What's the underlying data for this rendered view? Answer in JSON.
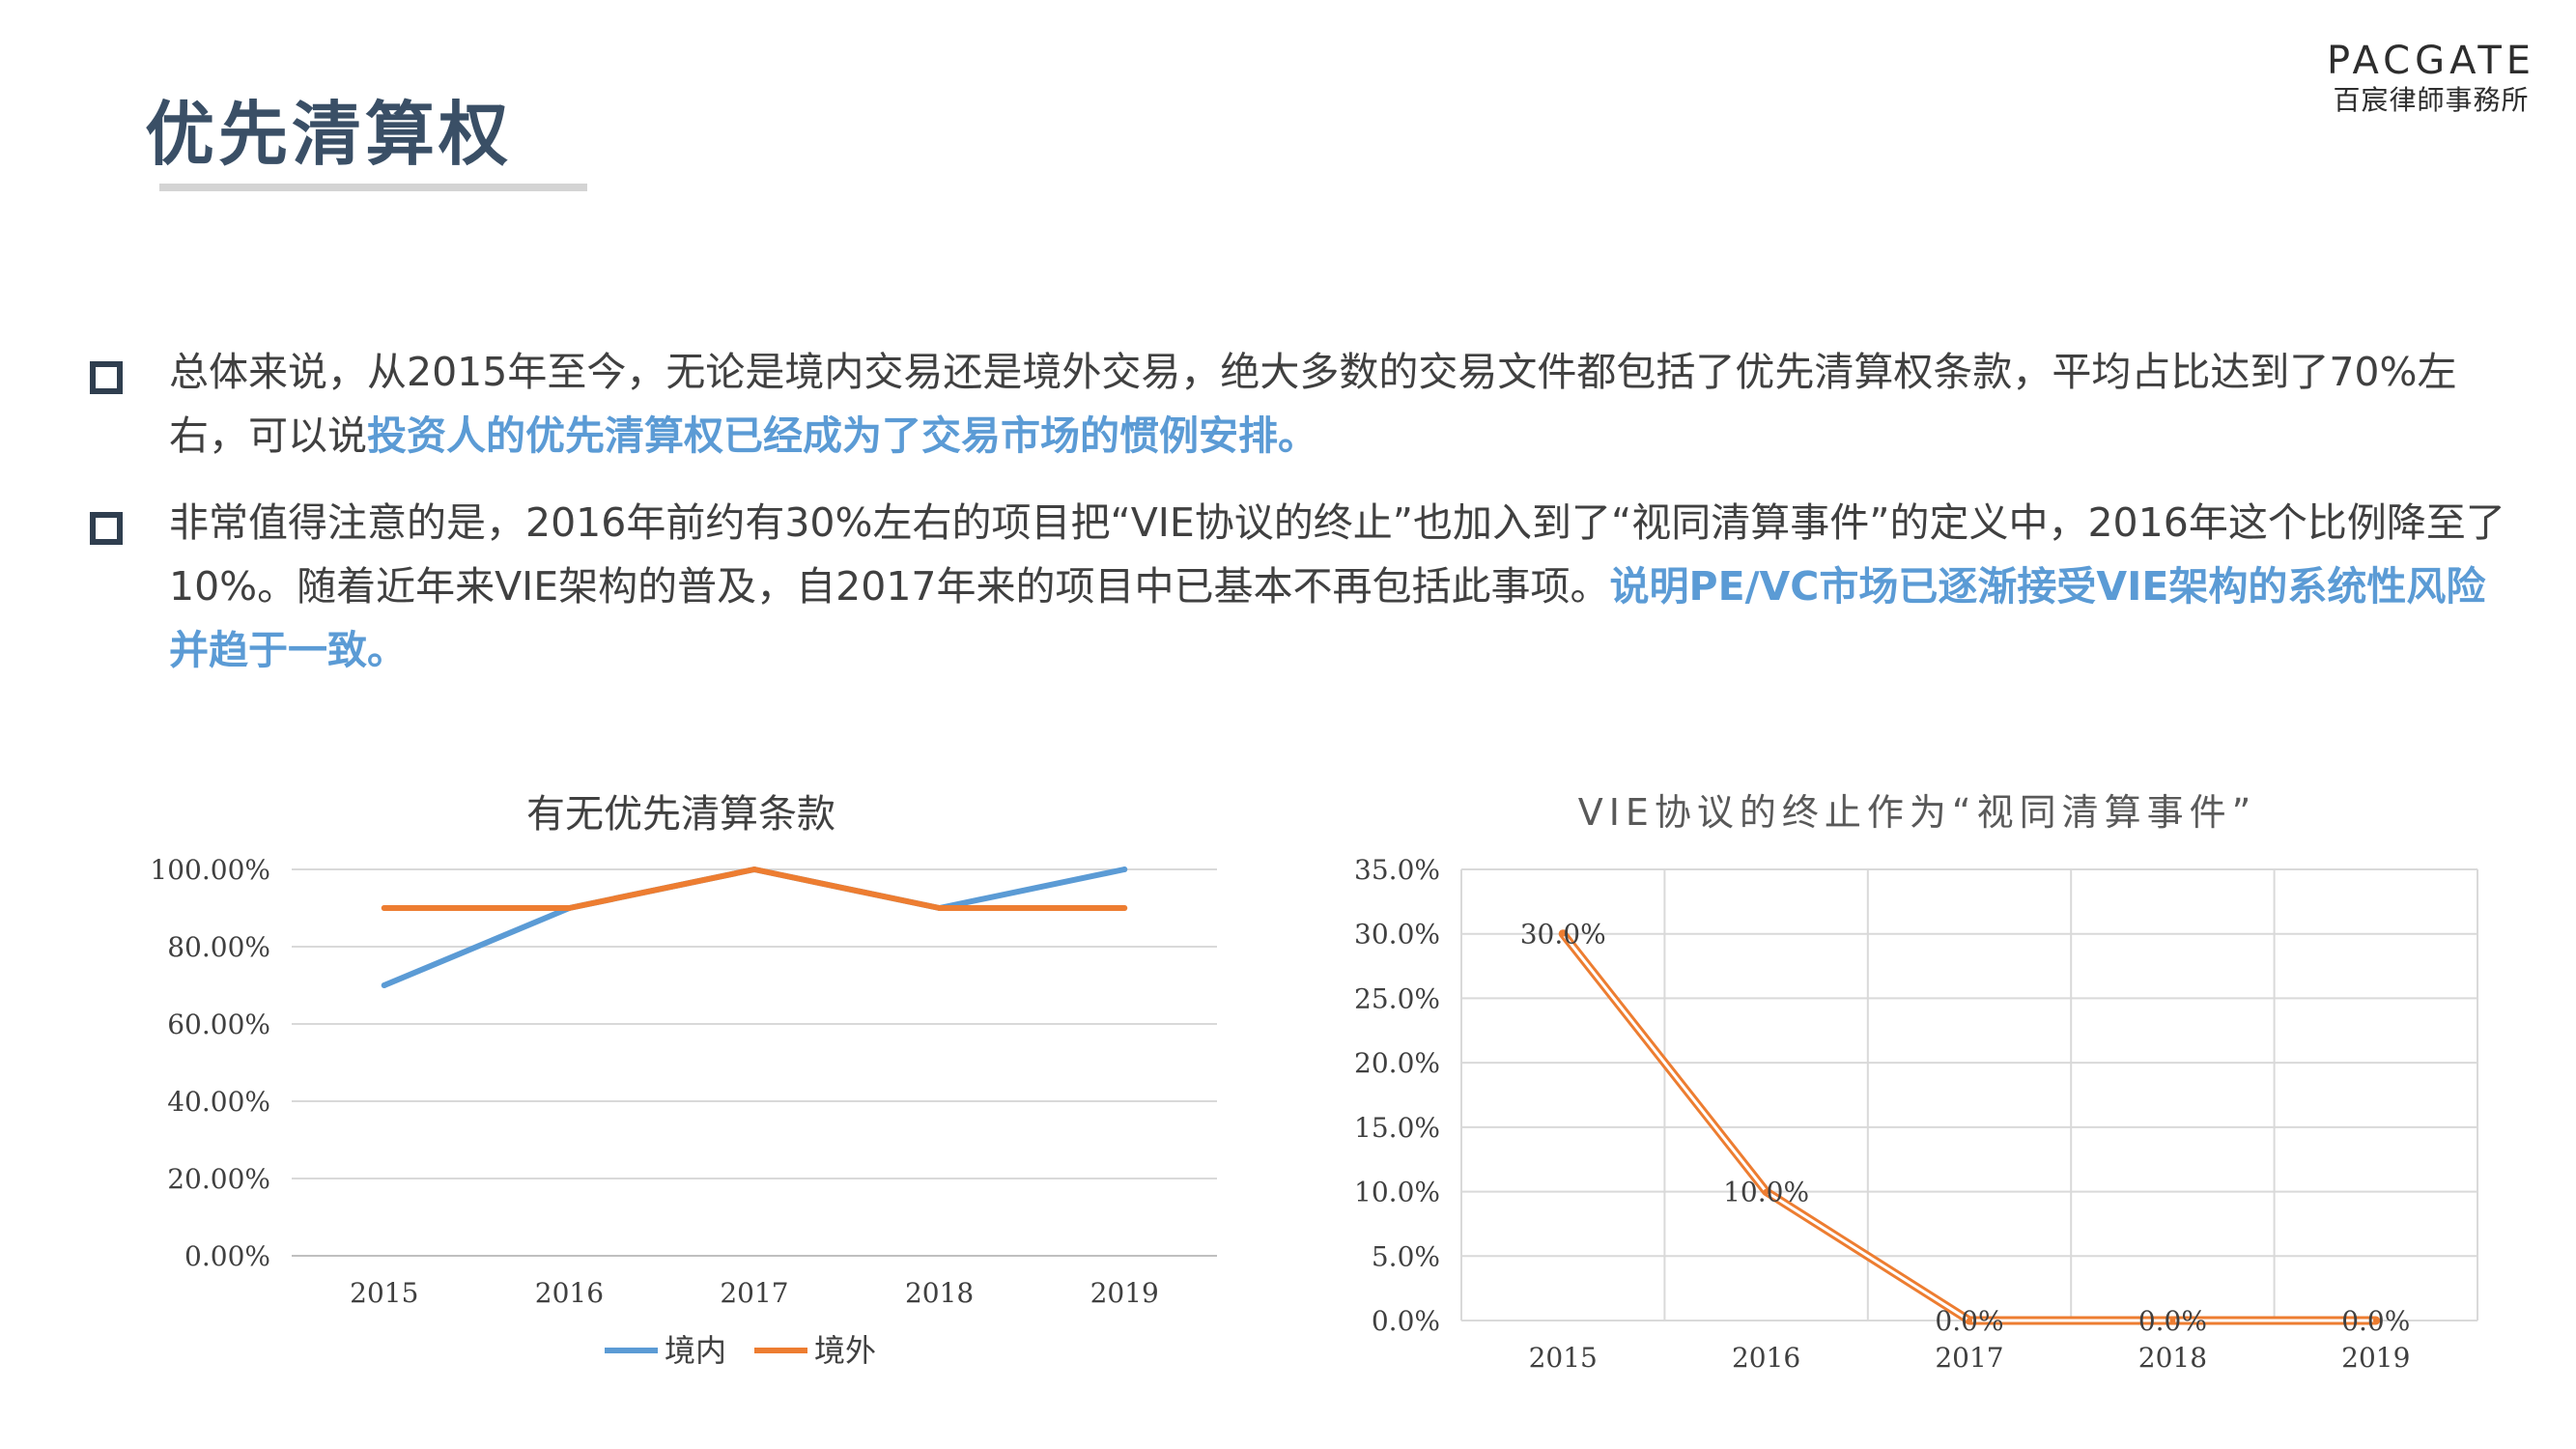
{
  "header": {
    "title": "优先清算权",
    "logo_top": "PACGATE",
    "logo_bottom": "百宸律師事務所"
  },
  "bullets": [
    {
      "text": "总体来说，从2015年至今，无论是境内交易还是境外交易，绝大多数的交易文件都包括了优先清算权条款，平均占比达到了70%左右，可以说",
      "highlight": "投资人的优先清算权已经成为了交易市场的惯例安排。"
    },
    {
      "text": "非常值得注意的是，2016年前约有30%左右的项目把“VIE协议的终止”也加入到了“视同清算事件”的定义中，2016年这个比例降至了10%。随着近年来VIE架构的普及，自2017年来的项目中已基本不再包括此事项。",
      "highlight": "说明PE/VC市场已逐渐接受VIE架构的系统性风险并趋于一致。"
    }
  ],
  "chart_data": [
    {
      "type": "line",
      "title": "有无优先清算条款",
      "categories": [
        "2015",
        "2016",
        "2017",
        "2018",
        "2019"
      ],
      "y_ticks": [
        "0.00%",
        "20.00%",
        "40.00%",
        "60.00%",
        "80.00%",
        "100.00%"
      ],
      "ylim": [
        0,
        100
      ],
      "grid": "horizontal",
      "legend_position": "bottom",
      "series": [
        {
          "name": "境内",
          "values": [
            70,
            90,
            100,
            90,
            100
          ],
          "color": "#5b9bd5"
        },
        {
          "name": "境外",
          "values": [
            90,
            90,
            100,
            90,
            90
          ],
          "color": "#ed7d31"
        }
      ]
    },
    {
      "type": "line",
      "title": "VIE协议的终止作为“视同清算事件”",
      "categories": [
        "2015",
        "2016",
        "2017",
        "2018",
        "2019"
      ],
      "y_ticks": [
        "0.0%",
        "5.0%",
        "10.0%",
        "15.0%",
        "20.0%",
        "25.0%",
        "30.0%",
        "35.0%"
      ],
      "ylim": [
        0,
        35
      ],
      "grid": "both",
      "series": [
        {
          "values": [
            30,
            10,
            0,
            0,
            0
          ],
          "labels": [
            "30.0%",
            "10.0%",
            "0.0%",
            "0.0%",
            "0.0%"
          ],
          "color": "#ed7d31"
        }
      ]
    }
  ]
}
